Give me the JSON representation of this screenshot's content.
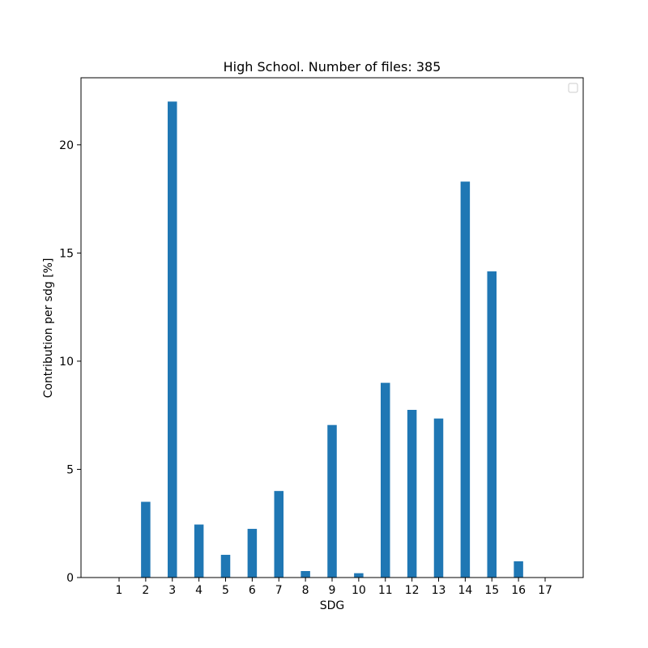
{
  "chart_data": {
    "type": "bar",
    "title": "High School. Number of files: 385",
    "xlabel": "SDG",
    "ylabel": "Contribution per sdg [%]",
    "categories": [
      "1",
      "2",
      "3",
      "4",
      "5",
      "6",
      "7",
      "8",
      "9",
      "10",
      "11",
      "12",
      "13",
      "14",
      "15",
      "16",
      "17"
    ],
    "values": [
      0,
      3.5,
      22.0,
      2.45,
      1.05,
      2.25,
      4.0,
      0.3,
      7.05,
      0.2,
      9.0,
      7.75,
      7.35,
      18.3,
      14.15,
      0.75,
      0
    ],
    "yticks": [
      0,
      5,
      10,
      15,
      20
    ],
    "ylim": [
      0,
      23.1
    ],
    "bar_color": "#1f77b4",
    "legend": "top-right",
    "grid": false
  }
}
